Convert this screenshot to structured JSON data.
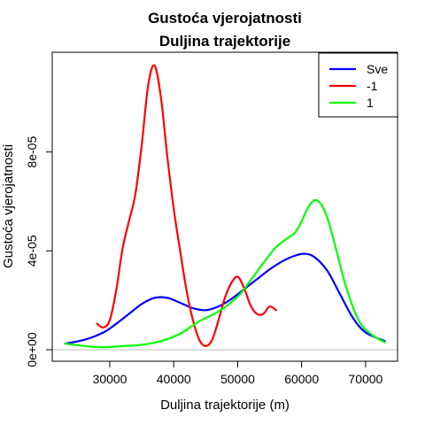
{
  "chart_data": {
    "type": "line",
    "title": "Gustoća vjerojatnosti",
    "subtitle": "Duljina trajektorije",
    "xlabel": "Duljina trajektorije (m)",
    "ylabel": "Gustoća vjerojatnosti",
    "xlim": [
      21000,
      75000
    ],
    "ylim": [
      0,
      0.00012
    ],
    "x_ticks": [
      30000,
      40000,
      50000,
      60000,
      70000
    ],
    "x_tick_labels": [
      "30000",
      "40000",
      "50000",
      "60000",
      "70000"
    ],
    "y_ticks": [
      0,
      4e-05,
      8e-05
    ],
    "y_tick_labels": [
      "0e+00",
      "4e-05",
      "8e-05"
    ],
    "legend_position": "top-right",
    "baseline": 0,
    "series": [
      {
        "name": "Sve",
        "color": "#0000ff",
        "x": [
          23000,
          26000,
          29000,
          31000,
          33000,
          35000,
          37000,
          39000,
          41000,
          43000,
          45000,
          47000,
          49000,
          51000,
          53000,
          55000,
          57000,
          59000,
          60500,
          62000,
          64000,
          66000,
          68000,
          70000,
          73000
        ],
        "y": [
          2.5e-06,
          4e-06,
          7e-06,
          1.05e-05,
          1.45e-05,
          1.85e-05,
          2.1e-05,
          2.1e-05,
          1.9e-05,
          1.68e-05,
          1.6e-05,
          1.75e-05,
          2.05e-05,
          2.45e-05,
          2.85e-05,
          3.25e-05,
          3.58e-05,
          3.81e-05,
          3.88e-05,
          3.75e-05,
          3.2e-05,
          2.25e-05,
          1.3e-05,
          7e-06,
          3.5e-06
        ]
      },
      {
        "name": "-1",
        "color": "#ff0000",
        "x": [
          28000,
          29000,
          30000,
          31000,
          32000,
          33000,
          34000,
          35000,
          36000,
          37000,
          38000,
          39000,
          40000,
          41000,
          42000,
          43000,
          44000,
          45000,
          46000,
          47000,
          48000,
          49000,
          50000,
          51000,
          52000,
          53000,
          54000,
          55000,
          56000
        ],
        "y": [
          1.05e-05,
          9e-06,
          1.2e-05,
          2.4e-05,
          4.1e-05,
          5.2e-05,
          6.3e-05,
          8.3e-05,
          0.000107,
          0.000115,
          0.000102,
          7.8e-05,
          5.7e-05,
          4e-05,
          2.4e-05,
          1.2e-05,
          4e-06,
          1.5e-06,
          4e-06,
          1.2e-05,
          2.1e-05,
          2.7e-05,
          2.95e-05,
          2.5e-05,
          1.8e-05,
          1.45e-05,
          1.45e-05,
          1.75e-05,
          1.6e-05
        ]
      },
      {
        "name": "1",
        "color": "#00ff00",
        "x": [
          23000,
          26000,
          29000,
          32000,
          35000,
          38000,
          41000,
          44000,
          47000,
          50000,
          52000,
          54000,
          56000,
          58000,
          59000,
          60000,
          61000,
          62000,
          63000,
          64000,
          65000,
          67000,
          69000,
          71000,
          73000
        ],
        "y": [
          2.5e-06,
          1.5e-06,
          1e-06,
          1.5e-06,
          2e-06,
          3.5e-06,
          6.5e-06,
          1.15e-05,
          1.55e-05,
          2.15e-05,
          2.8e-05,
          3.5e-05,
          4.15e-05,
          4.55e-05,
          4.75e-05,
          5.2e-05,
          5.75e-05,
          6.05e-05,
          5.9e-05,
          5.35e-05,
          4.45e-05,
          2.5e-05,
          1.15e-05,
          6e-06,
          3e-06
        ]
      }
    ]
  }
}
